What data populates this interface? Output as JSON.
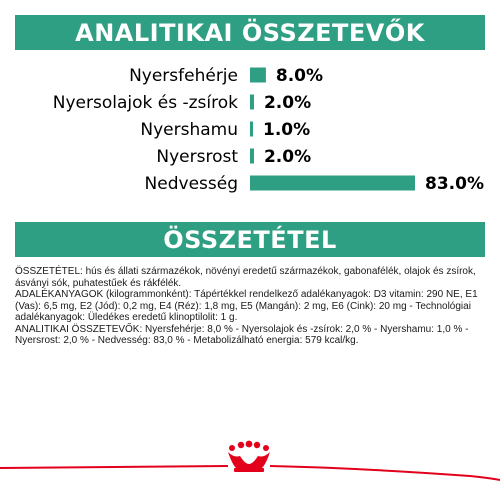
{
  "header": {
    "analytic_title": "ANALITIKAI ÖSSZETEVŐK"
  },
  "chart_data": {
    "type": "bar",
    "orientation": "horizontal",
    "categories": [
      "Nyersfehérje",
      "Nyersolajok és -zsírok",
      "Nyershamu",
      "Nyersrost",
      "Nedvesség"
    ],
    "values": [
      8.0,
      2.0,
      1.0,
      2.0,
      83.0
    ],
    "value_labels": [
      "8.0%",
      "2.0%",
      "1.0%",
      "2.0%",
      "83.0%"
    ],
    "title": "ANALITIKAI ÖSSZETEVŐK",
    "xlim": [
      0,
      83
    ],
    "grid": false,
    "bar_color": "#2e9f82"
  },
  "composition": {
    "title": "ÖSSZETÉTEL",
    "paragraphs": [
      "ÖSSZETÉTEL: hús és állati származékok, növényi eredetű származékok, gabonafélék, olajok és zsírok, ásványi sók, puhatestűek és rákfélék.",
      "ADALÉKANYAGOK (kilogrammonként): Tápértékkel rendelkező adalékanyagok: D3 vitamin: 290 NE, E1 (Vas): 6,5 mg, E2 (Jód): 0,2 mg, E4 (Réz): 1,8 mg, E5 (Mangán): 2 mg, E6 (Cink): 20 mg - Technológiai adalékanyagok: Üledékes eredetű klinoptilolit: 1 g.",
      "ANALITIKAI ÖSSZETEVŐK: Nyersfehérje: 8,0 % - Nyersolajok és -zsírok: 2,0 % - Nyershamu: 1,0 % - Nyersrost: 2,0 % - Nedvesség: 83,0 % - Metabolizálható energia: 579 kcal/kg."
    ]
  },
  "colors": {
    "accent": "#2e9f82",
    "brand_red": "#e2001a"
  },
  "footer": {
    "logo_icon": "royal-canin-crown-icon"
  }
}
